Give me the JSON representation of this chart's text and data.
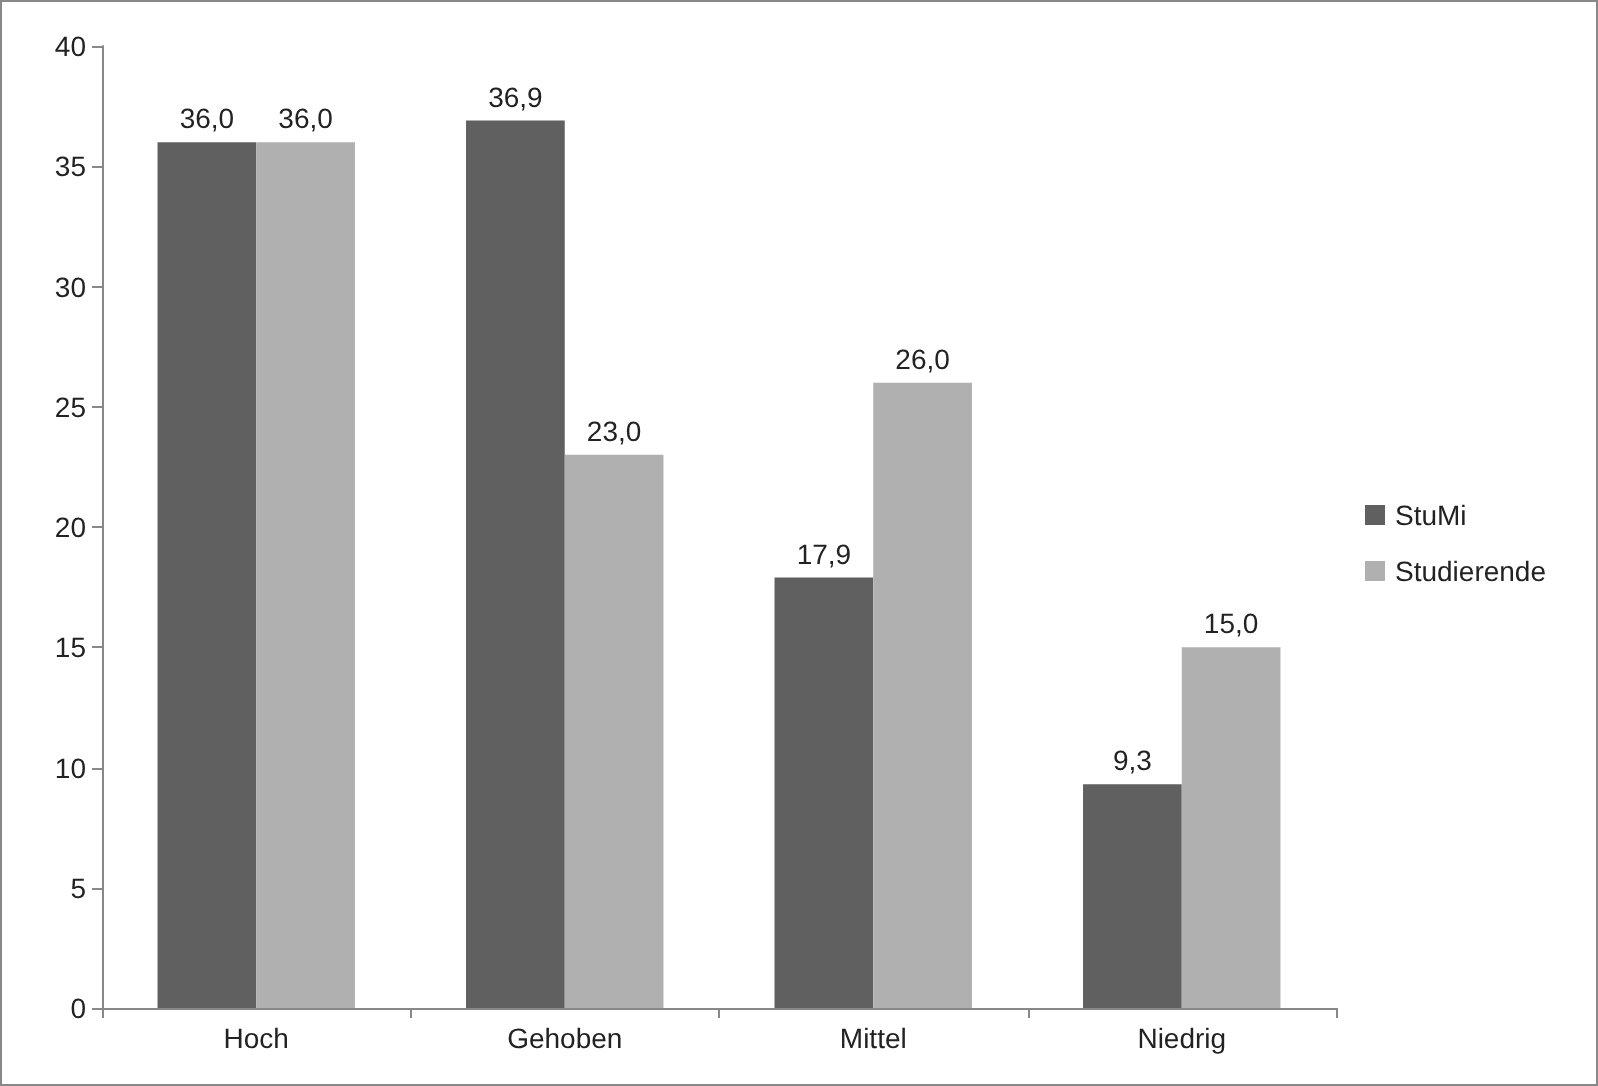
{
  "chart_data": {
    "type": "bar",
    "categories": [
      "Hoch",
      "Gehoben",
      "Mittel",
      "Niedrig"
    ],
    "series": [
      {
        "name": "StuMi",
        "color": "#606060",
        "values": [
          36.0,
          36.9,
          17.9,
          9.3
        ],
        "value_labels": [
          "36,0",
          "36,9",
          "17,9",
          "9,3"
        ]
      },
      {
        "name": "Studierende",
        "color": "#b0b0b0",
        "values": [
          36.0,
          23.0,
          26.0,
          15.0
        ],
        "value_labels": [
          "36,0",
          "23,0",
          "26,0",
          "15,0"
        ]
      }
    ],
    "ylim": [
      0,
      40
    ],
    "yticks": [
      0,
      5,
      10,
      15,
      20,
      25,
      30,
      35,
      40
    ],
    "grid": false,
    "legend": "right"
  }
}
